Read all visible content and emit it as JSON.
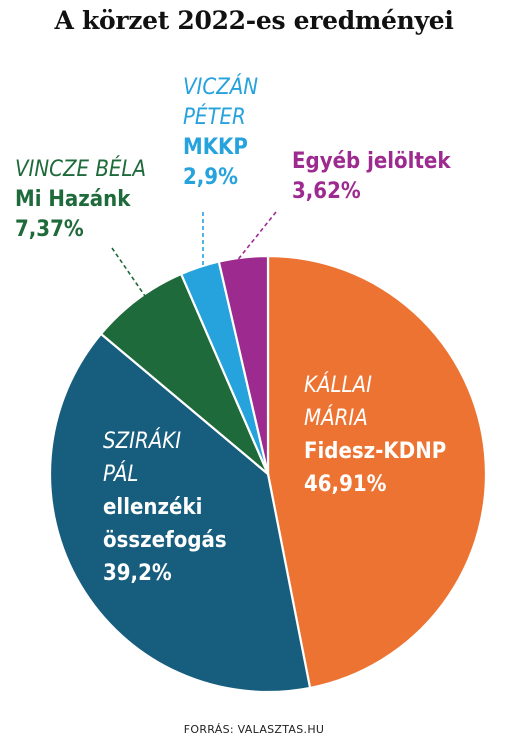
{
  "title": "A körzet 2022-es eredményei",
  "source": "FORRÁS: VALASZTAS.HU",
  "chart_data": {
    "type": "pie",
    "title": "A körzet 2022-es eredményei",
    "slices": [
      {
        "name_lines": [
          "KÁLLAI",
          "MÁRIA"
        ],
        "party_lines": [
          "Fidesz-KDNP"
        ],
        "label": "46,91%",
        "value": 46.91,
        "color": "#ec7331",
        "name_color": "#ffffff",
        "party_color": "#ffffff",
        "label_placement": "inside"
      },
      {
        "name_lines": [
          "SZIRÁKI",
          "PÁL"
        ],
        "party_lines": [
          "ellenzéki",
          "összefogás"
        ],
        "label": "39,2%",
        "value": 39.2,
        "color": "#175d7e",
        "name_color": "#ffffff",
        "party_color": "#ffffff",
        "label_placement": "inside"
      },
      {
        "name_lines": [
          "VINCZE BÉLA"
        ],
        "party_lines": [
          "Mi Hazánk"
        ],
        "label": "7,37%",
        "value": 7.37,
        "color": "#1f6a3a",
        "name_color": "#1f6a3a",
        "party_color": "#1f6a3a",
        "label_placement": "outside"
      },
      {
        "name_lines": [
          "VICZÁN",
          "PÉTER"
        ],
        "party_lines": [
          "MKKP"
        ],
        "label": "2,9%",
        "value": 2.9,
        "color": "#26a2dc",
        "name_color": "#26a2dc",
        "party_color": "#26a2dc",
        "label_placement": "outside"
      },
      {
        "name_lines": [],
        "party_lines": [
          "Egyéb jelöltek"
        ],
        "label": "3,62%",
        "value": 3.62,
        "color": "#9d2b8f",
        "name_color": "#9d2b8f",
        "party_color": "#9d2b8f",
        "label_placement": "outside"
      }
    ]
  }
}
